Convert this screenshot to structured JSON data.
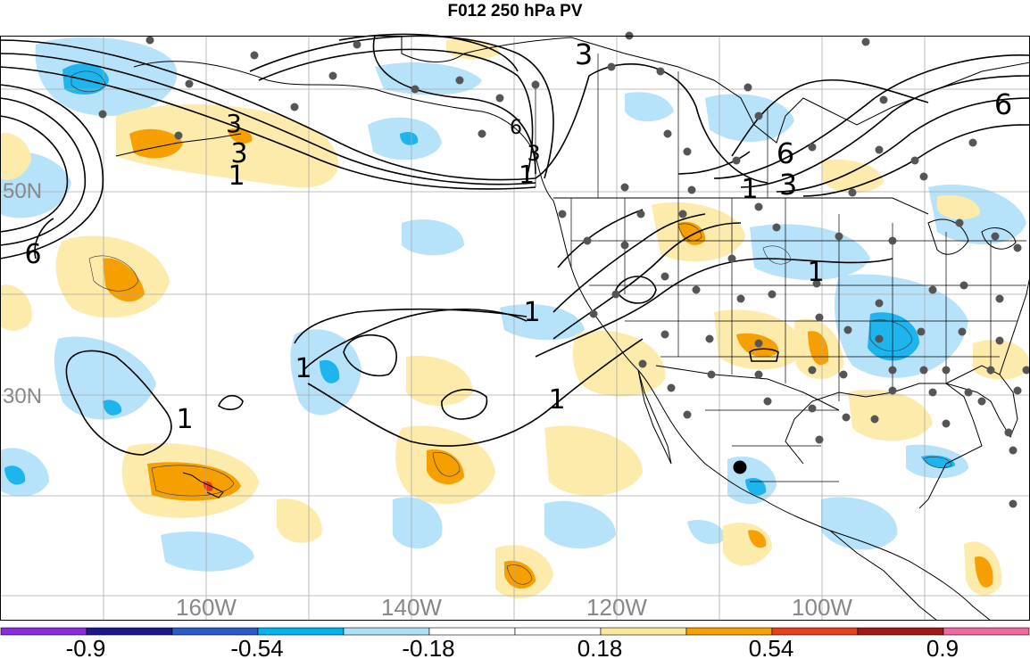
{
  "title": "F012 250 hPa PV",
  "map": {
    "lat_labels": [
      "50N",
      "30N"
    ],
    "lon_labels": [
      "160W",
      "140W",
      "120W",
      "100W"
    ],
    "contour_labels": [
      "3",
      "6",
      "1",
      "3",
      "3",
      "6",
      "1",
      "6",
      "3",
      "1",
      "1",
      "1",
      "1",
      "1",
      "6",
      "3",
      "1"
    ]
  },
  "colorbar": {
    "labels": [
      "-0.9",
      "-0.54",
      "-0.18",
      "0.18",
      "0.54",
      "0.9"
    ],
    "colors": [
      "#8a2be2",
      "#1a1a8c",
      "#2a5bc8",
      "#00b4f0",
      "#aee0f8",
      "#ffffff",
      "#ffffff",
      "#fbe99a",
      "#f7a000",
      "#e8401c",
      "#a01818",
      "#f06aa0"
    ]
  },
  "colors": {
    "neg_light": "#b6e2fa",
    "neg_mid": "#1eb4ee",
    "pos_light": "#fcebab",
    "pos_mid": "#f5a000",
    "pos_strong": "#e83a14",
    "gridline": "#aaaaaa",
    "station_dot": "#555555"
  }
}
